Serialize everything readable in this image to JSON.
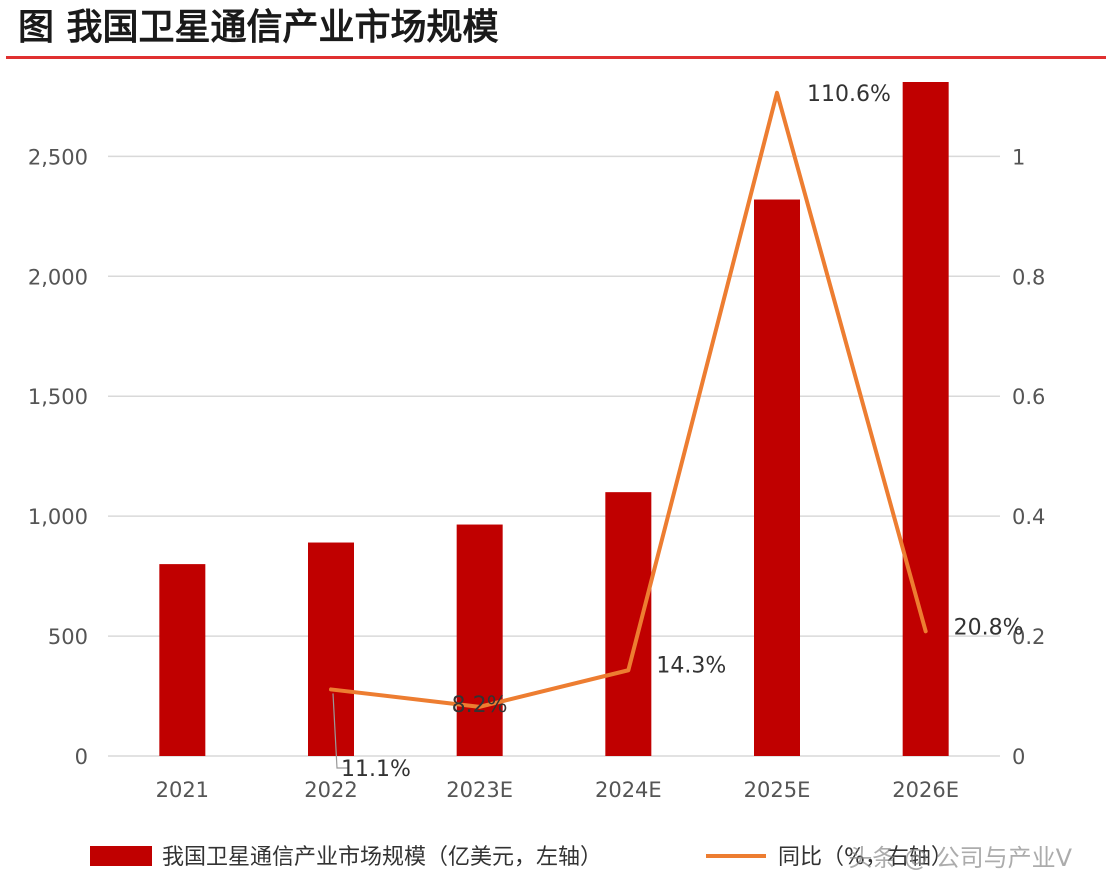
{
  "title": "图 我国卫星通信产业市场规模",
  "colors": {
    "bar": "#c00000",
    "line": "#ed7d31",
    "rule": "#e03030",
    "grid": "#d9d9d9"
  },
  "chart_data": {
    "type": "bar",
    "categories": [
      "2021",
      "2022",
      "2023E",
      "2024E",
      "2025E",
      "2026E"
    ],
    "series": [
      {
        "name": "我国卫星通信产业市场规模（亿美元，左轴）",
        "type": "bar",
        "axis": "left",
        "values": [
          800,
          890,
          965,
          1100,
          2320,
          2810
        ]
      },
      {
        "name": "同比（%，右轴）",
        "type": "line",
        "axis": "right",
        "values": [
          null,
          0.111,
          0.082,
          0.143,
          1.106,
          0.208
        ]
      }
    ],
    "data_labels": [
      null,
      "11.1%",
      "8.2%",
      "14.3%",
      "110.6%",
      "20.8%"
    ],
    "y_left": {
      "ticks": [
        "0",
        "500",
        "1,000",
        "1,500",
        "2,000",
        "2,500"
      ],
      "ylim": [
        0,
        2810
      ]
    },
    "y_right": {
      "ticks": [
        "0",
        "0.2",
        "0.4",
        "0.6",
        "0.8",
        "1"
      ],
      "ylim": [
        0,
        1.124
      ]
    },
    "grid": true,
    "legend_position": "bottom"
  },
  "watermark": "头条 @ 公司与产业V"
}
